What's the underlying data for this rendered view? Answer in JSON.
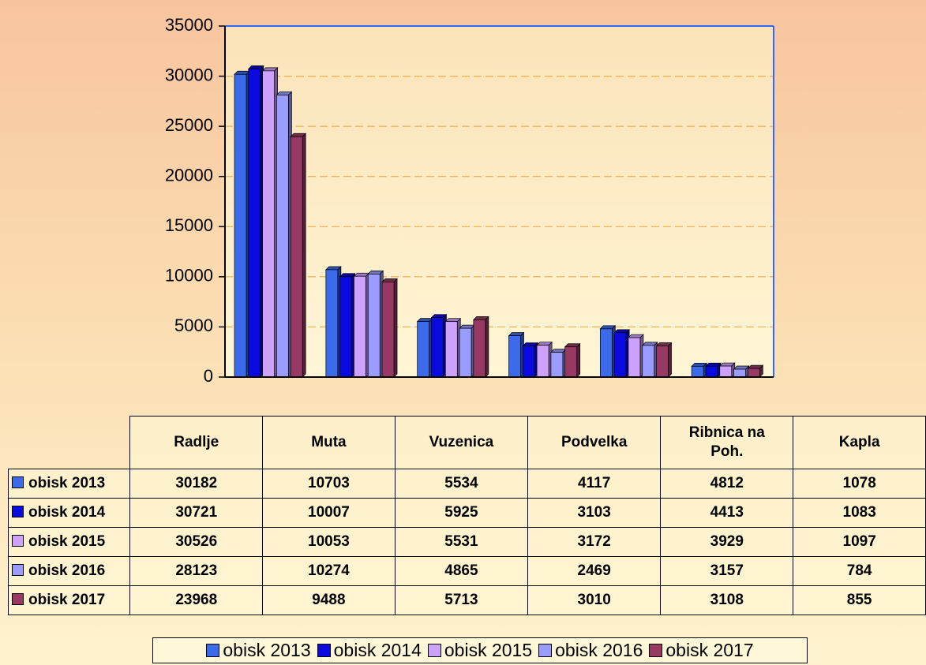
{
  "chart_data": {
    "type": "bar",
    "categories": [
      "Radlje",
      "Muta",
      "Vuzenica",
      "Podvelka",
      "Ribnica na Poh.",
      "Kapla"
    ],
    "series": [
      {
        "name": "obisk 2013",
        "color": "#3b6bea",
        "values": [
          30182,
          10703,
          5534,
          4117,
          4812,
          1078
        ]
      },
      {
        "name": "obisk 2014",
        "color": "#0a0ae0",
        "values": [
          30721,
          10007,
          5925,
          3103,
          4413,
          1083
        ]
      },
      {
        "name": "obisk 2015",
        "color": "#cda2ff",
        "values": [
          30526,
          10053,
          5531,
          3172,
          3929,
          1097
        ]
      },
      {
        "name": "obisk 2016",
        "color": "#9b9cff",
        "values": [
          28123,
          10274,
          4865,
          2469,
          3157,
          784
        ]
      },
      {
        "name": "obisk 2017",
        "color": "#963a64",
        "values": [
          23968,
          9488,
          5713,
          3010,
          3108,
          855
        ]
      }
    ],
    "ylim": [
      0,
      35000
    ],
    "yticks": [
      0,
      5000,
      10000,
      15000,
      20000,
      25000,
      30000,
      35000
    ],
    "grid": true
  }
}
